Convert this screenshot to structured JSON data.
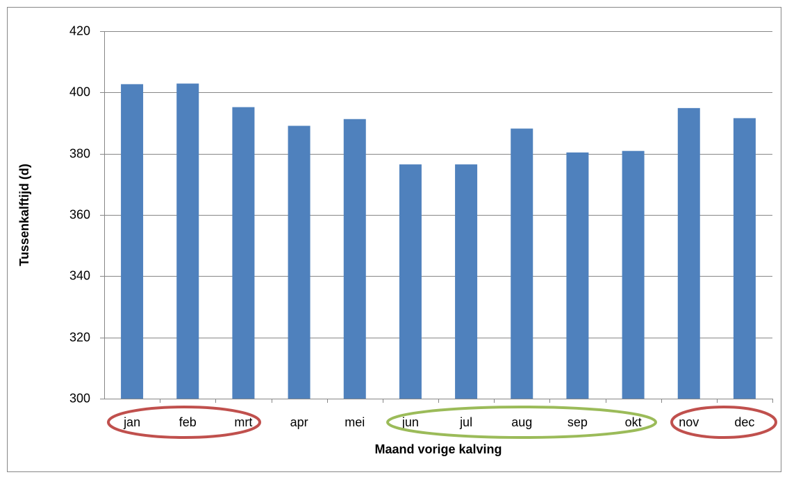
{
  "chart_data": {
    "type": "bar",
    "x_label": "Maand vorige kalving",
    "y_label": "Tussenkalftijd (d)",
    "categories": [
      "jan",
      "feb",
      "mrt",
      "apr",
      "mei",
      "jun",
      "jul",
      "aug",
      "sep",
      "okt",
      "nov",
      "dec"
    ],
    "values": [
      402.7,
      402.9,
      395.2,
      389.1,
      391.3,
      376.5,
      376.5,
      388.2,
      380.4,
      380.9,
      394.9,
      391.6
    ],
    "color": "#4f81bd",
    "ylim": [
      300,
      420
    ],
    "yticks": [
      300,
      320,
      340,
      360,
      380,
      400,
      420
    ],
    "grid": true
  }
}
